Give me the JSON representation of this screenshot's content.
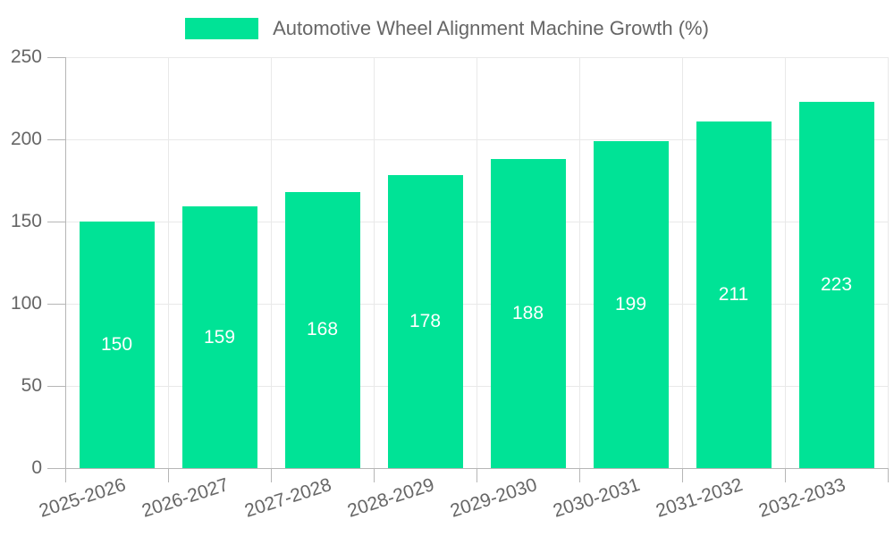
{
  "chart_data": {
    "type": "bar",
    "title": "Automotive Wheel Alignment Machine Growth (%)",
    "categories": [
      "2025-2026",
      "2026-2027",
      "2027-2028",
      "2028-2029",
      "2029-2030",
      "2030-2031",
      "2031-2032",
      "2032-2033"
    ],
    "values": [
      150,
      159,
      168,
      178,
      188,
      199,
      211,
      223
    ],
    "xlabel": "",
    "ylabel": "",
    "ylim": [
      0,
      250
    ],
    "yticks": [
      0,
      50,
      100,
      150,
      200,
      250
    ],
    "grid": true,
    "legend_position": "top",
    "legend_label": "Automotive Wheel Alignment Machine Growth (%)",
    "colors": {
      "bar": "#00E396",
      "value_label": "#ffffff",
      "axis_label": "#666666",
      "gridline": "#e9e9e9",
      "axis_line": "#b6b6b6",
      "background": "#ffffff"
    }
  }
}
